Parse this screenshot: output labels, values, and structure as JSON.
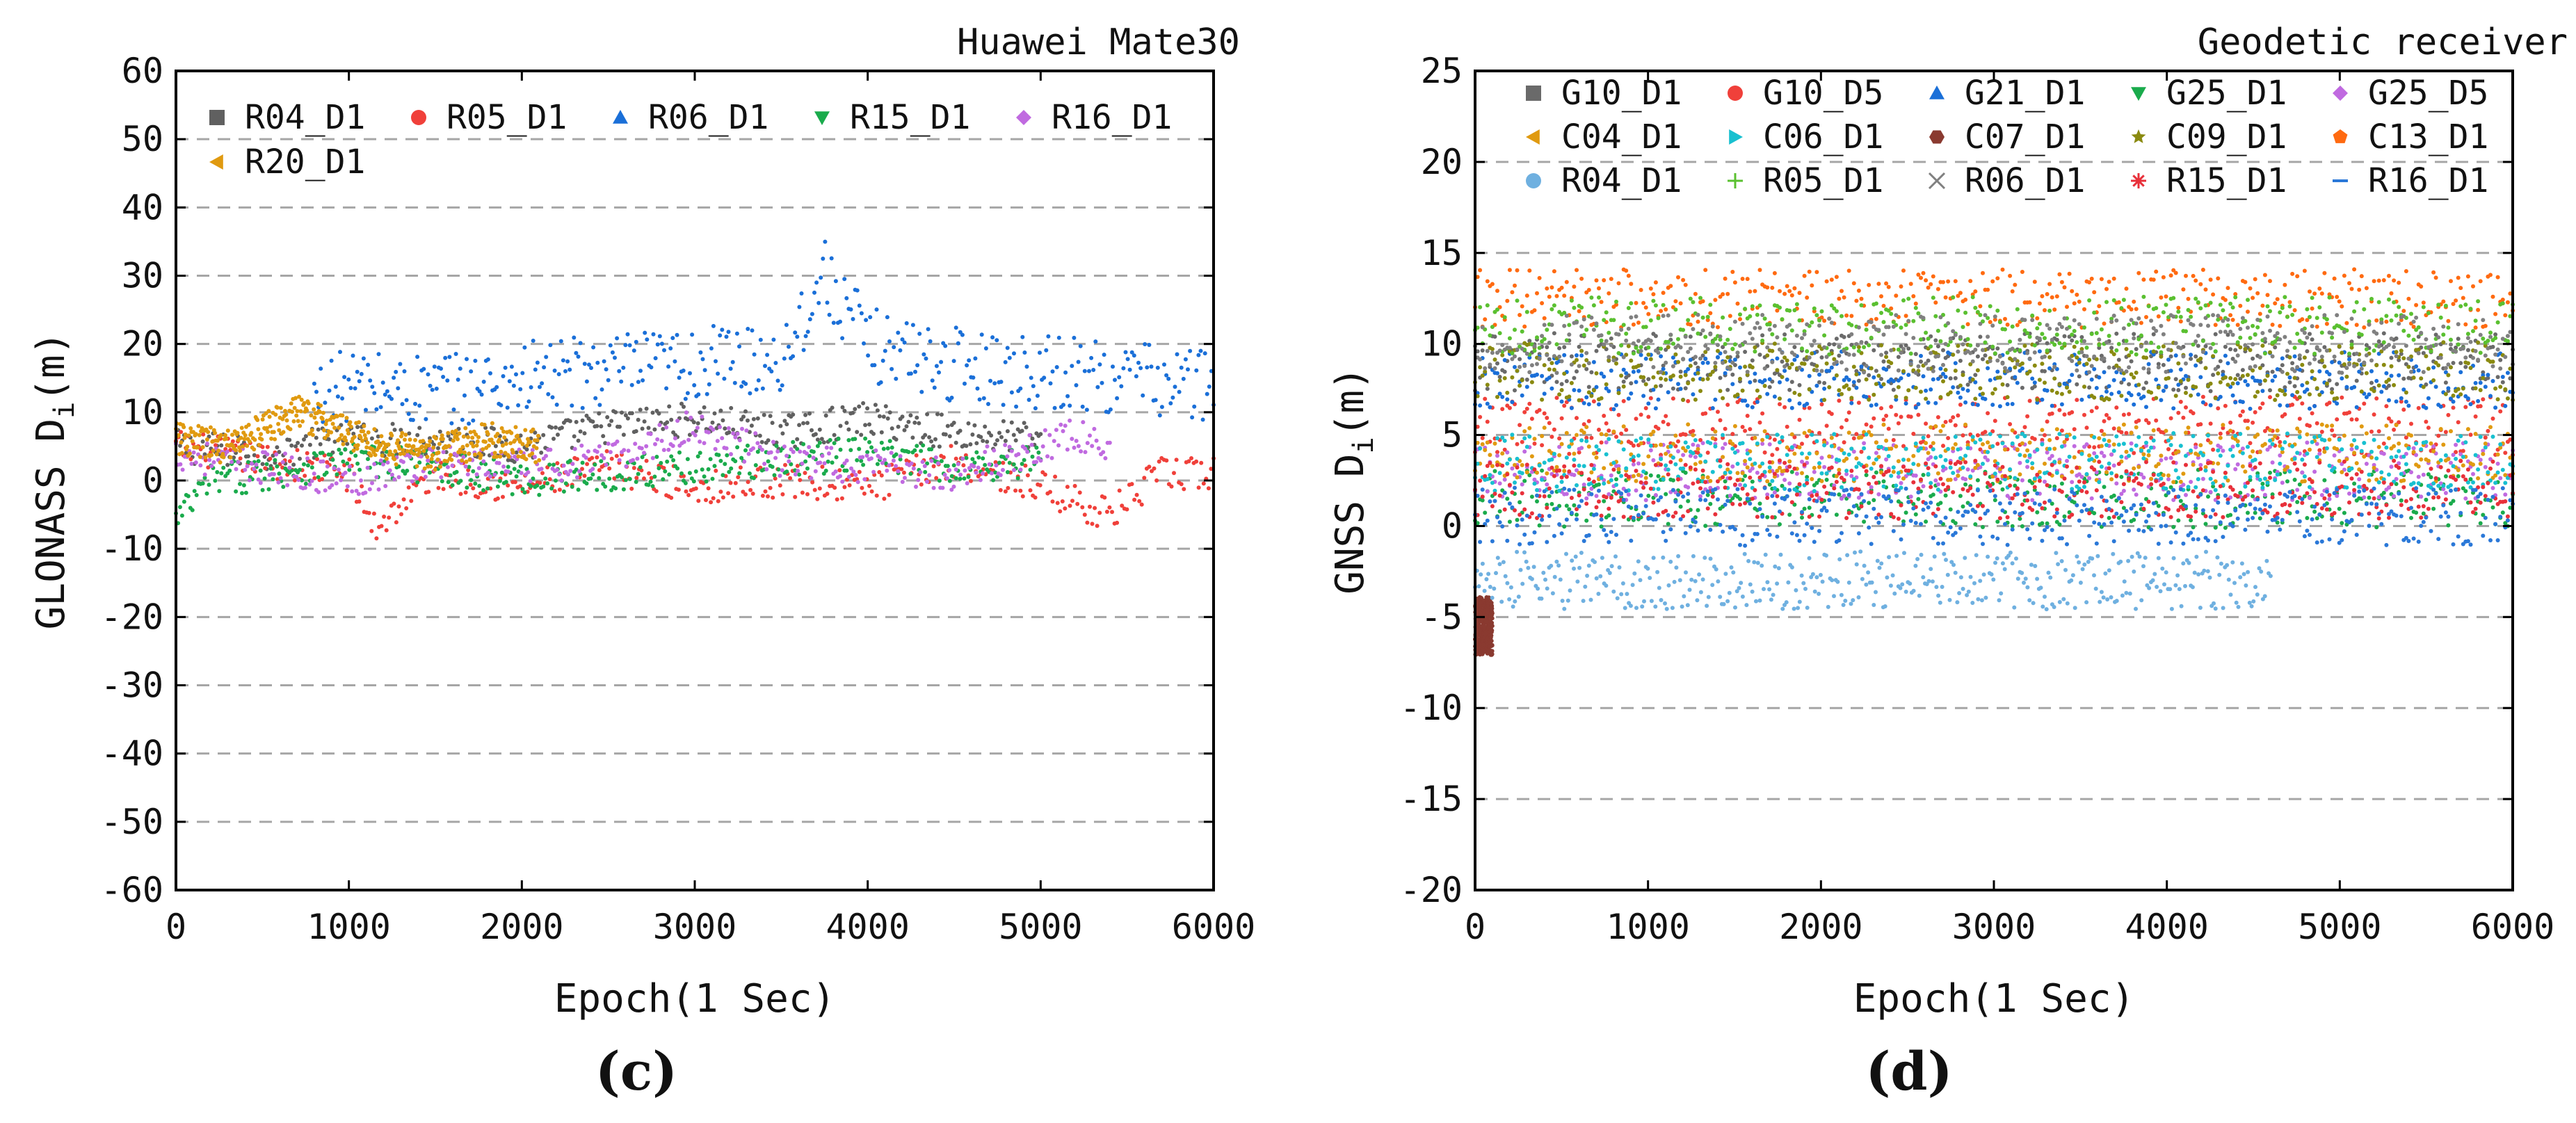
{
  "chart_data": [
    {
      "type": "scatter",
      "panel_label": "(c)",
      "title": "Huawei Mate30",
      "xlabel": "Epoch(1 Sec)",
      "ylabel": "GLONASS D_i(m)",
      "ylabel_main": "GLONASS D",
      "ylabel_sub": "i",
      "ylabel_unit": "(m)",
      "xlim": [
        0,
        6000
      ],
      "ylim": [
        -60,
        60
      ],
      "xticks": [
        0,
        1000,
        2000,
        3000,
        4000,
        5000,
        6000
      ],
      "yticks": [
        -60,
        -50,
        -40,
        -30,
        -20,
        -10,
        0,
        10,
        20,
        30,
        40,
        50,
        60
      ],
      "grid": "horizontal dashed",
      "legend_position": "top-left",
      "series": [
        {
          "name": "R04_D1",
          "color": "#606060",
          "marker": "square",
          "x": [
            0,
            500,
            1000,
            1500,
            2000,
            2500,
            3000,
            3500,
            4000,
            4500,
            5000
          ],
          "values": [
            5,
            4,
            6,
            6,
            5,
            8,
            9,
            7,
            9,
            7,
            6
          ]
        },
        {
          "name": "R05_D1",
          "color": "#f0403a",
          "marker": "circle",
          "x": [
            0,
            500,
            1000,
            1150,
            1500,
            2000,
            2500,
            3000,
            3500,
            4000,
            4500,
            5000,
            5400,
            5700,
            6000
          ],
          "values": [
            5,
            3,
            1,
            -7,
            1,
            -1,
            2,
            -1,
            0,
            -1,
            3,
            -1,
            -5,
            1,
            1
          ]
        },
        {
          "name": "R06_D1",
          "color": "#1a6fd8",
          "marker": "triangle-up",
          "x": [
            800,
            1000,
            1500,
            2000,
            2500,
            3000,
            3500,
            3750,
            4000,
            4500,
            5000,
            5500,
            6000
          ],
          "values": [
            12,
            14,
            13,
            15,
            16,
            17,
            18,
            30,
            20,
            17,
            16,
            15,
            14
          ]
        },
        {
          "name": "R15_D1",
          "color": "#1aab4c",
          "marker": "triangle-down",
          "x": [
            0,
            200,
            500,
            1000,
            1500,
            2000,
            2500,
            3000,
            3500,
            4000,
            4500,
            5000
          ],
          "values": [
            -6,
            0,
            1,
            3,
            2,
            0,
            1,
            2,
            3,
            4,
            2,
            3
          ]
        },
        {
          "name": "R16_D1",
          "color": "#c06ae0",
          "marker": "diamond",
          "x": [
            0,
            500,
            1000,
            1500,
            2000,
            2500,
            3000,
            3500,
            4000,
            4500,
            5000,
            5200,
            5400
          ],
          "values": [
            4,
            2,
            0,
            3,
            2,
            3,
            8,
            3,
            2,
            1,
            5,
            7,
            4
          ]
        },
        {
          "name": "R20_D1",
          "color": "#e09a10",
          "marker": "triangle-left",
          "x": [
            0,
            300,
            700,
            900,
            1200,
            1500,
            1800,
            2100
          ],
          "values": [
            6,
            5,
            10,
            8,
            5,
            4,
            6,
            5
          ]
        }
      ]
    },
    {
      "type": "scatter",
      "panel_label": "(d)",
      "title": "Geodetic receiver",
      "xlabel": "Epoch(1 Sec)",
      "ylabel": "GNSS D_i(m)",
      "ylabel_main": "GNSS D",
      "ylabel_sub": "i",
      "ylabel_unit": "(m)",
      "xlim": [
        0,
        6000
      ],
      "ylim": [
        -20,
        25
      ],
      "xticks": [
        0,
        1000,
        2000,
        3000,
        4000,
        5000,
        6000
      ],
      "yticks": [
        -20,
        -15,
        -10,
        -5,
        0,
        5,
        10,
        15,
        20,
        25
      ],
      "grid": "horizontal dashed",
      "legend_position": "top",
      "series": [
        {
          "name": "G10_D1",
          "color": "#6a6a6a",
          "marker": "square",
          "x": [
            0,
            6000
          ],
          "values": [
            9,
            9
          ]
        },
        {
          "name": "G10_D5",
          "color": "#f0403a",
          "marker": "circle",
          "x": [
            0,
            6000
          ],
          "values": [
            5.5,
            5.5
          ]
        },
        {
          "name": "G21_D1",
          "color": "#1a6fd8",
          "marker": "triangle-up",
          "x": [
            0,
            6000
          ],
          "values": [
            8,
            8
          ]
        },
        {
          "name": "G25_D1",
          "color": "#1aab4c",
          "marker": "triangle-down",
          "x": [
            0,
            6000
          ],
          "values": [
            1.5,
            1.5
          ]
        },
        {
          "name": "G25_D5",
          "color": "#c06ae0",
          "marker": "diamond",
          "x": [
            0,
            6000
          ],
          "values": [
            3,
            3
          ]
        },
        {
          "name": "C04_D1",
          "color": "#e09a10",
          "marker": "triangle-left",
          "x": [
            0,
            6000
          ],
          "values": [
            4,
            4
          ]
        },
        {
          "name": "C06_D1",
          "color": "#18c0d0",
          "marker": "triangle-right",
          "x": [
            0,
            6000
          ],
          "values": [
            3.5,
            3.5
          ]
        },
        {
          "name": "C07_D1",
          "color": "#8a3a30",
          "marker": "hexagon",
          "x": [
            0,
            100
          ],
          "values": [
            -5.5,
            -5.5
          ]
        },
        {
          "name": "C09_D1",
          "color": "#8a8a10",
          "marker": "star",
          "x": [
            0,
            6000
          ],
          "values": [
            8.5,
            8.5
          ]
        },
        {
          "name": "C13_D1",
          "color": "#ff6a10",
          "marker": "pentagon",
          "x": [
            0,
            6000
          ],
          "values": [
            12.5,
            12.5
          ]
        },
        {
          "name": "R04_D1",
          "color": "#6fb0e0",
          "marker": "sphere",
          "x": [
            0,
            4600
          ],
          "values": [
            -3,
            -3
          ]
        },
        {
          "name": "R05_D1",
          "color": "#5ac030",
          "marker": "plus",
          "x": [
            0,
            6000
          ],
          "values": [
            11,
            11
          ]
        },
        {
          "name": "R06_D1",
          "color": "#808080",
          "marker": "cross",
          "x": [
            0,
            6000
          ],
          "values": [
            10,
            10
          ]
        },
        {
          "name": "R15_D1",
          "color": "#e8303a",
          "marker": "asterisk",
          "x": [
            0,
            6000
          ],
          "values": [
            2,
            2
          ]
        },
        {
          "name": "R16_D1",
          "color": "#2a78d8",
          "marker": "dash",
          "x": [
            0,
            6000
          ],
          "values": [
            0.5,
            0.5
          ]
        }
      ]
    }
  ]
}
